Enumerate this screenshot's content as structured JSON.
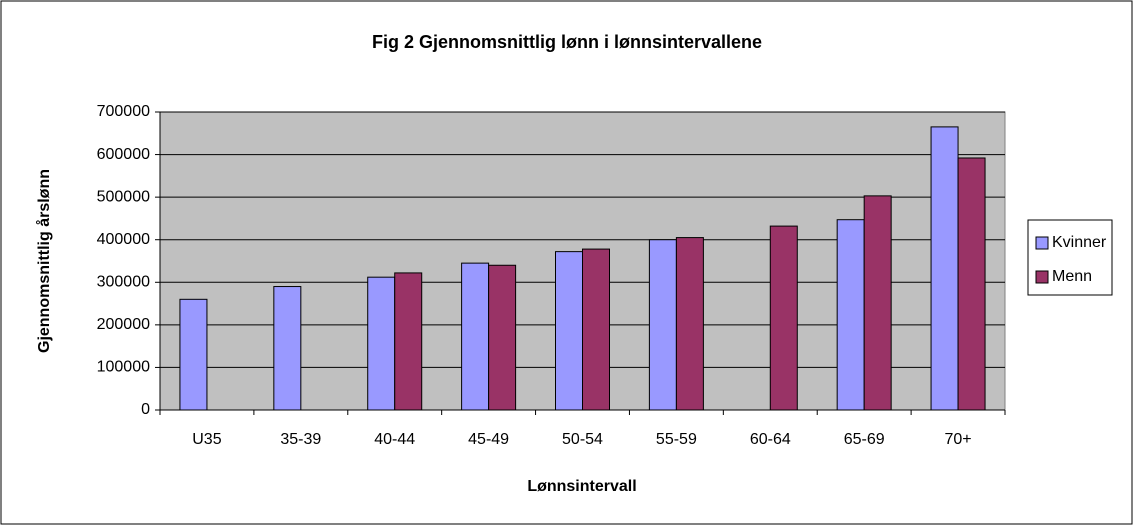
{
  "chart_data": {
    "type": "bar",
    "title": "Fig 2  Gjennomsnittlig lønn i lønnsintervallene",
    "x_label": "Lønnsintervall",
    "y_label": "Gjennomsnittlig årslønn",
    "categories": [
      "U35",
      "35-39",
      "40-44",
      "45-49",
      "50-54",
      "55-59",
      "60-64",
      "65-69",
      "70+"
    ],
    "series": [
      {
        "name": "Kvinner",
        "color": "#9999ff",
        "values": [
          260000,
          290000,
          312000,
          345000,
          372000,
          400000,
          null,
          447000,
          665000
        ]
      },
      {
        "name": "Menn",
        "color": "#993366",
        "values": [
          null,
          null,
          322000,
          340000,
          378000,
          405000,
          432000,
          503000,
          592000
        ]
      }
    ],
    "ylim": [
      0,
      700000
    ],
    "yticks": [
      0,
      100000,
      200000,
      300000,
      400000,
      500000,
      600000,
      700000
    ],
    "grid": true,
    "legend": "right"
  }
}
